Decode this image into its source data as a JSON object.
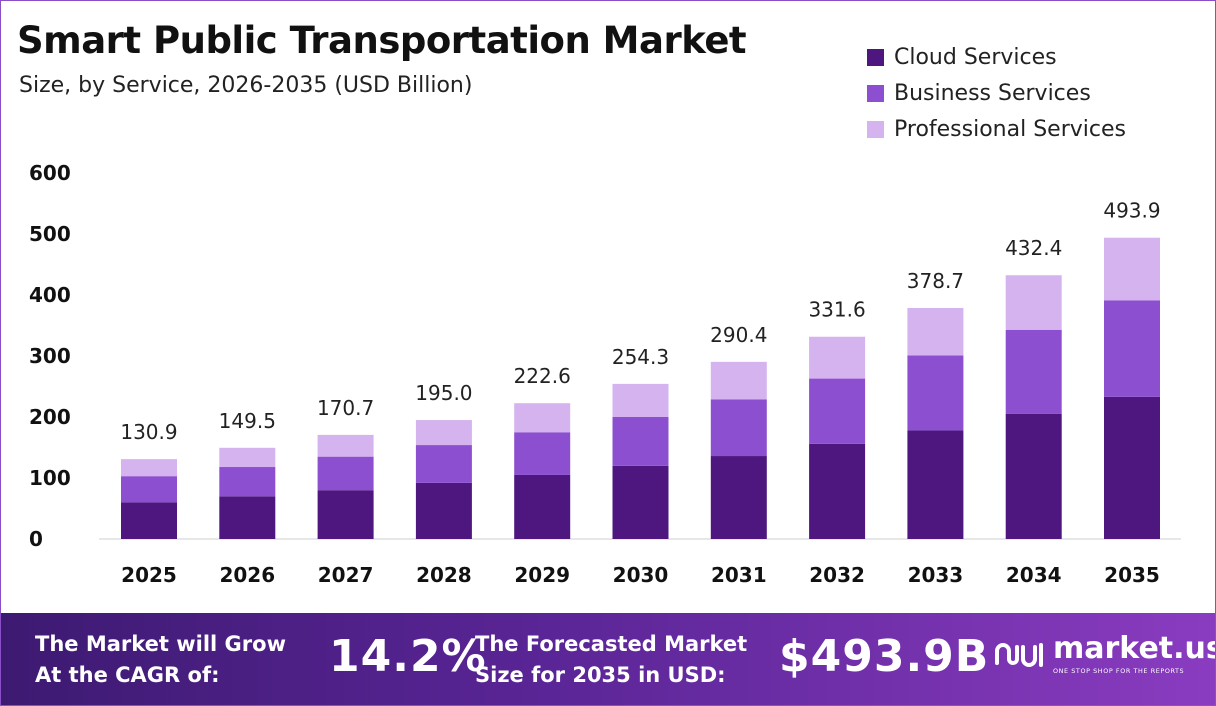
{
  "title": "Smart Public Transportation Market",
  "subtitle": "Size, by Service, 2026-2035 (USD Billion)",
  "colors": {
    "cloud": "#4e1780",
    "business": "#8c4fd0",
    "professional": "#d5b3ee",
    "footer_start": "#3d1a72",
    "footer_end": "#8a3cc0",
    "axis_line": "#cfcfcf"
  },
  "chart_data": {
    "type": "bar",
    "stacked": true,
    "categories": [
      "2025",
      "2026",
      "2027",
      "2028",
      "2029",
      "2030",
      "2031",
      "2032",
      "2033",
      "2034",
      "2035"
    ],
    "series": [
      {
        "name": "Cloud Services",
        "values": [
          60,
          70,
          80,
          92,
          105,
          120,
          136,
          156,
          178,
          205,
          233
        ]
      },
      {
        "name": "Business Services",
        "values": [
          43,
          48,
          55,
          62,
          70,
          80,
          93,
          107,
          123,
          138,
          158
        ]
      },
      {
        "name": "Professional Services",
        "values": [
          27.9,
          31.5,
          35.7,
          41.0,
          47.6,
          54.3,
          61.4,
          68.6,
          77.7,
          89.4,
          102.9
        ]
      }
    ],
    "totals": [
      "130.9",
      "149.5",
      "170.7",
      "195.0",
      "222.6",
      "254.3",
      "290.4",
      "331.6",
      "378.7",
      "432.4",
      "493.9"
    ],
    "y_ticks": [
      "0",
      "100",
      "200",
      "300",
      "400",
      "500",
      "600"
    ],
    "ylim": [
      0,
      600
    ],
    "grid": false,
    "legend_position": "top-right"
  },
  "footer": {
    "cagr_text_line1": "The Market will Grow",
    "cagr_text_line2": "At the CAGR of:",
    "cagr_value": "14.2%",
    "forecast_text_line1": "The Forecasted Market",
    "forecast_text_line2": "Size for 2035 in USD:",
    "forecast_value": "$493.9B",
    "brand_name": "market.us",
    "brand_tagline": "ONE STOP SHOP FOR THE REPORTS",
    "brand_icon": "market-us-logo-icon"
  }
}
